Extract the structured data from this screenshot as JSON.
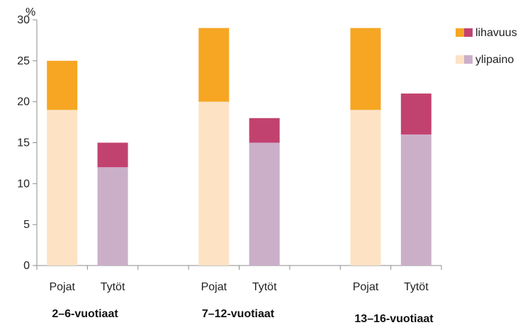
{
  "chart_data": {
    "type": "bar",
    "stacked": true,
    "y_unit": "%",
    "ylim": [
      0,
      30
    ],
    "yticks": [
      0,
      5,
      10,
      15,
      20,
      25,
      30
    ],
    "categories": [
      "Pojat",
      "Tytöt",
      "Pojat",
      "Tytöt",
      "Pojat",
      "Tytöt"
    ],
    "groups": [
      "2–6-vuotiaat",
      "7–12-vuotiaat",
      "13–16-vuotiaat"
    ],
    "series": [
      {
        "name": "ylipaino",
        "values": [
          19,
          12,
          20,
          15,
          19,
          16
        ]
      },
      {
        "name": "lihavuus",
        "values": [
          6,
          3,
          9,
          3,
          10,
          5
        ]
      }
    ],
    "colors": {
      "ylipaino_pojat": "#FDE3C4",
      "ylipaino_tytot": "#CBAFC9",
      "lihavuus_pojat": "#F6A623",
      "lihavuus_tytot": "#C2426F",
      "axis": "#8c8c8c"
    },
    "legend": {
      "position": "right"
    },
    "grid": false
  }
}
